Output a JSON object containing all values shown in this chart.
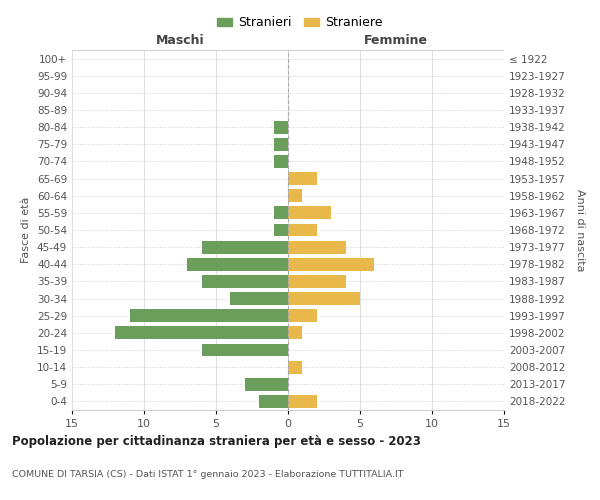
{
  "age_groups": [
    "0-4",
    "5-9",
    "10-14",
    "15-19",
    "20-24",
    "25-29",
    "30-34",
    "35-39",
    "40-44",
    "45-49",
    "50-54",
    "55-59",
    "60-64",
    "65-69",
    "70-74",
    "75-79",
    "80-84",
    "85-89",
    "90-94",
    "95-99",
    "100+"
  ],
  "birth_years": [
    "2018-2022",
    "2013-2017",
    "2008-2012",
    "2003-2007",
    "1998-2002",
    "1993-1997",
    "1988-1992",
    "1983-1987",
    "1978-1982",
    "1973-1977",
    "1968-1972",
    "1963-1967",
    "1958-1962",
    "1953-1957",
    "1948-1952",
    "1943-1947",
    "1938-1942",
    "1933-1937",
    "1928-1932",
    "1923-1927",
    "≤ 1922"
  ],
  "males": [
    2,
    3,
    0,
    6,
    12,
    11,
    4,
    6,
    7,
    6,
    1,
    1,
    0,
    0,
    1,
    1,
    1,
    0,
    0,
    0,
    0
  ],
  "females": [
    2,
    0,
    1,
    0,
    1,
    2,
    5,
    4,
    6,
    4,
    2,
    3,
    1,
    2,
    0,
    0,
    0,
    0,
    0,
    0,
    0
  ],
  "male_color": "#6a9e5a",
  "female_color": "#e8b84b",
  "xlim": 15,
  "title": "Popolazione per cittadinanza straniera per età e sesso - 2023",
  "subtitle": "COMUNE DI TARSIA (CS) - Dati ISTAT 1° gennaio 2023 - Elaborazione TUTTITALIA.IT",
  "ylabel_left": "Fasce di età",
  "ylabel_right": "Anni di nascita",
  "legend_male": "Stranieri",
  "legend_female": "Straniere",
  "maschi_label": "Maschi",
  "femmine_label": "Femmine",
  "grid_color": "#d0d0d0",
  "background_color": "#ffffff"
}
